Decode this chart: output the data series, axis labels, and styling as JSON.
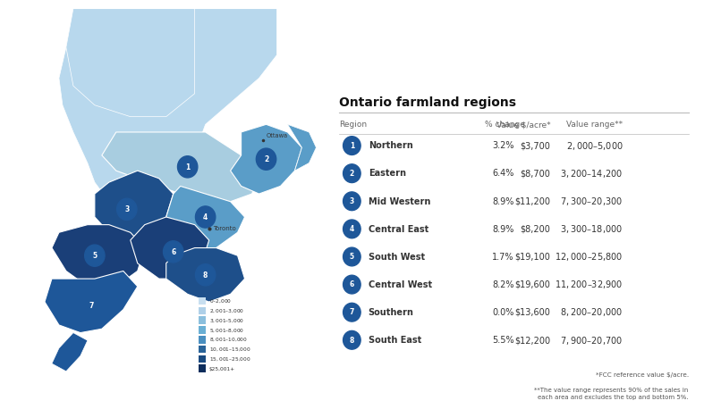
{
  "title": "Ontario farmland regions",
  "col_headers": [
    "Region",
    "% change",
    "Value $/acre*",
    "Value range**"
  ],
  "rows": [
    {
      "num": "1",
      "name": "Northern",
      "pct": "3.2%",
      "value": "$3,700",
      "range": "$2,000 – $5,000"
    },
    {
      "num": "2",
      "name": "Eastern",
      "pct": "6.4%",
      "value": "$8,700",
      "range": "$3,200 – $14,200"
    },
    {
      "num": "3",
      "name": "Mid Western",
      "pct": "8.9%",
      "value": "$11,200",
      "range": "$7,300 – $20,300"
    },
    {
      "num": "4",
      "name": "Central East",
      "pct": "8.9%",
      "value": "$8,200",
      "range": "$3,300 – $18,000"
    },
    {
      "num": "5",
      "name": "South West",
      "pct": "1.7%",
      "value": "$19,100",
      "range": "$12,000 – $25,800"
    },
    {
      "num": "6",
      "name": "Central West",
      "pct": "8.2%",
      "value": "$19,600",
      "range": "$11,200 – $32,900"
    },
    {
      "num": "7",
      "name": "Southern",
      "pct": "0.0%",
      "value": "$13,600",
      "range": "$8,200 – $20,000"
    },
    {
      "num": "8",
      "name": "South East",
      "pct": "5.5%",
      "value": "$12,200",
      "range": "$7,900 – $20,700"
    }
  ],
  "footnote1": "*FCC reference value $/acre.",
  "footnote2": "**The value range represents 90% of the sales in\neach area and excludes the top and bottom 5%.",
  "legend_items": [
    {
      "label": "$0 – $2,000",
      "color": "#c8dff0"
    },
    {
      "label": "$2,001 – $3,000",
      "color": "#afd0e8"
    },
    {
      "label": "$3,001 – $5,000",
      "color": "#8bbfdd"
    },
    {
      "label": "$5,001 – $8,000",
      "color": "#6aafd4"
    },
    {
      "label": "$8,001 – $10,000",
      "color": "#4a8fc0"
    },
    {
      "label": "$10,001 – $15,000",
      "color": "#2a6499"
    },
    {
      "label": "$15,001 – $25,000",
      "color": "#1a4a80"
    },
    {
      "label": "$25,001+",
      "color": "#0d2d5c"
    }
  ],
  "bg_color": "#ffffff",
  "circle_color": "#1e5799",
  "text_color": "#333333",
  "header_color": "#111111",
  "map_colors": {
    "northern_bg": "#b8d8ed",
    "1": "#a8cde0",
    "2": "#5a9dc8",
    "3": "#1e4f8a",
    "4": "#5a9dc8",
    "5": "#1a3f78",
    "6": "#1a3f78",
    "7": "#1e5799",
    "8": "#1e4f8a"
  },
  "toronto_dot_color": "#333333",
  "ottawa_dot_color": "#333333"
}
